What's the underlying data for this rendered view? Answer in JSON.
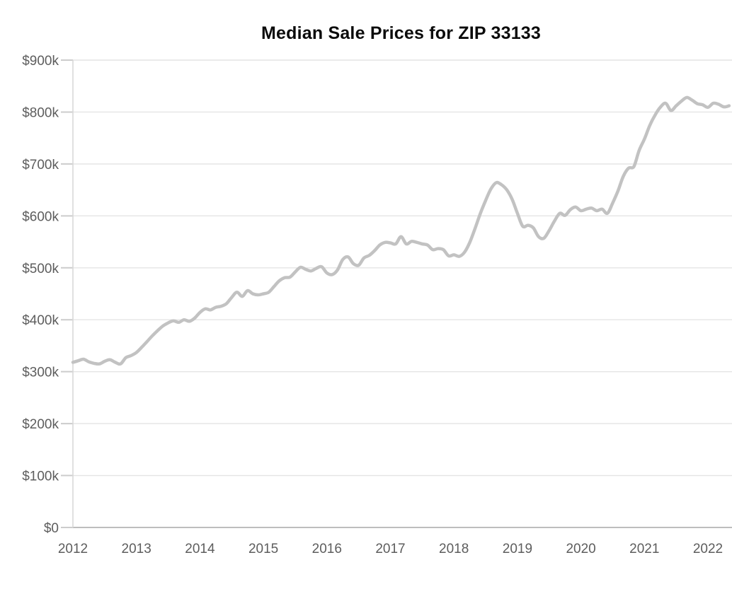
{
  "chart_data": {
    "type": "line",
    "title": "Median Sale Prices for ZIP 33133",
    "xlabel": "",
    "ylabel": "",
    "legend": "none",
    "grid": "horizontal",
    "background_color": "#ffffff",
    "line_color": "#c2c2c2",
    "grid_color": "#e4e4e4",
    "tick_stub_color": "#cccccc",
    "axis_line_color": "#bdbdbd",
    "vertical_axis_color": "#d9d9d9",
    "label_color": "#5d5d5d",
    "title_color": "#0b0b0b",
    "x_tick_labels": [
      "2012",
      "2013",
      "2014",
      "2015",
      "2016",
      "2017",
      "2018",
      "2019",
      "2020",
      "2021",
      "2022"
    ],
    "y_tick_labels": [
      "$0",
      "$100k",
      "$200k",
      "$300k",
      "$400k",
      "$500k",
      "$600k",
      "$700k",
      "$800k",
      "$900k"
    ],
    "y_tick_values_k": [
      0,
      100,
      200,
      300,
      400,
      500,
      600,
      700,
      800,
      900
    ],
    "ylim_k": [
      0,
      900
    ],
    "x_start_month": "2012-01",
    "x_end_month": "2022-05",
    "series": [
      {
        "name": "Median sale price ($ thousands, monthly)",
        "values_k": [
          318,
          321,
          324,
          319,
          316,
          315,
          320,
          323,
          318,
          315,
          327,
          331,
          337,
          347,
          358,
          369,
          379,
          388,
          394,
          398,
          395,
          400,
          397,
          403,
          414,
          421,
          419,
          424,
          426,
          431,
          443,
          453,
          445,
          456,
          450,
          448,
          450,
          453,
          464,
          475,
          481,
          482,
          492,
          501,
          497,
          494,
          499,
          502,
          490,
          487,
          496,
          516,
          521,
          508,
          505,
          519,
          524,
          533,
          544,
          549,
          548,
          546,
          560,
          546,
          551,
          549,
          546,
          544,
          535,
          537,
          535,
          523,
          525,
          522,
          530,
          549,
          576,
          605,
          630,
          652,
          664,
          660,
          650,
          632,
          605,
          580,
          582,
          577,
          560,
          557,
          572,
          590,
          605,
          601,
          612,
          617,
          610,
          613,
          615,
          610,
          613,
          605,
          625,
          648,
          676,
          692,
          695,
          726,
          748,
          774,
          794,
          809,
          817,
          803,
          812,
          821,
          828,
          823,
          816,
          814,
          809,
          817,
          815,
          810,
          812
        ]
      }
    ]
  }
}
